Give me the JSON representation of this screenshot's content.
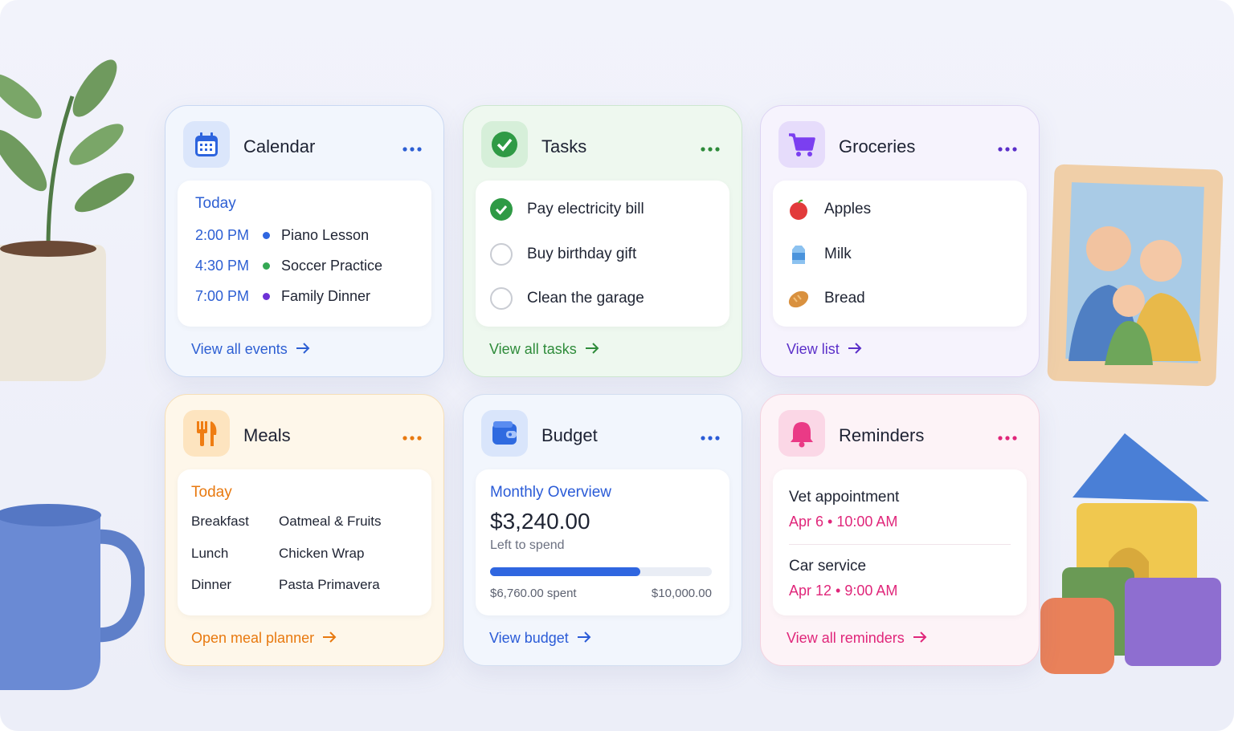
{
  "calendar": {
    "title": "Calendar",
    "day": "Today",
    "events": [
      {
        "time": "2:00 PM",
        "name": "Piano Lesson",
        "color": "#2f66e0"
      },
      {
        "time": "4:30 PM",
        "name": "Soccer Practice",
        "color": "#34a853"
      },
      {
        "time": "7:00 PM",
        "name": "Family Dinner",
        "color": "#6d32d6"
      }
    ],
    "link": "View all events"
  },
  "tasks": {
    "title": "Tasks",
    "items": [
      {
        "text": "Pay electricity bill",
        "done": true
      },
      {
        "text": "Buy birthday gift",
        "done": false
      },
      {
        "text": "Clean the garage",
        "done": false
      }
    ],
    "link": "View all tasks"
  },
  "groceries": {
    "title": "Groceries",
    "items": [
      "Apples",
      "Milk",
      "Bread"
    ],
    "link": "View list"
  },
  "meals": {
    "title": "Meals",
    "day": "Today",
    "rows": [
      {
        "meal": "Breakfast",
        "dish": "Oatmeal & Fruits"
      },
      {
        "meal": "Lunch",
        "dish": "Chicken Wrap"
      },
      {
        "meal": "Dinner",
        "dish": "Pasta Primavera"
      }
    ],
    "link": "Open meal planner"
  },
  "budget": {
    "title": "Budget",
    "heading": "Monthly Overview",
    "amount": "$3,240.00",
    "caption": "Left to spend",
    "spent": {
      "value": 6760,
      "label": "$6,760.00 spent"
    },
    "total": {
      "value": 10000,
      "label": "$10,000.00"
    },
    "link": "View budget"
  },
  "reminders": {
    "title": "Reminders",
    "items": [
      {
        "title": "Vet appointment",
        "when": "Apr 6 • 10:00 AM"
      },
      {
        "title": "Car service",
        "when": "Apr 12 • 9:00 AM"
      }
    ],
    "link": "View all reminders"
  }
}
